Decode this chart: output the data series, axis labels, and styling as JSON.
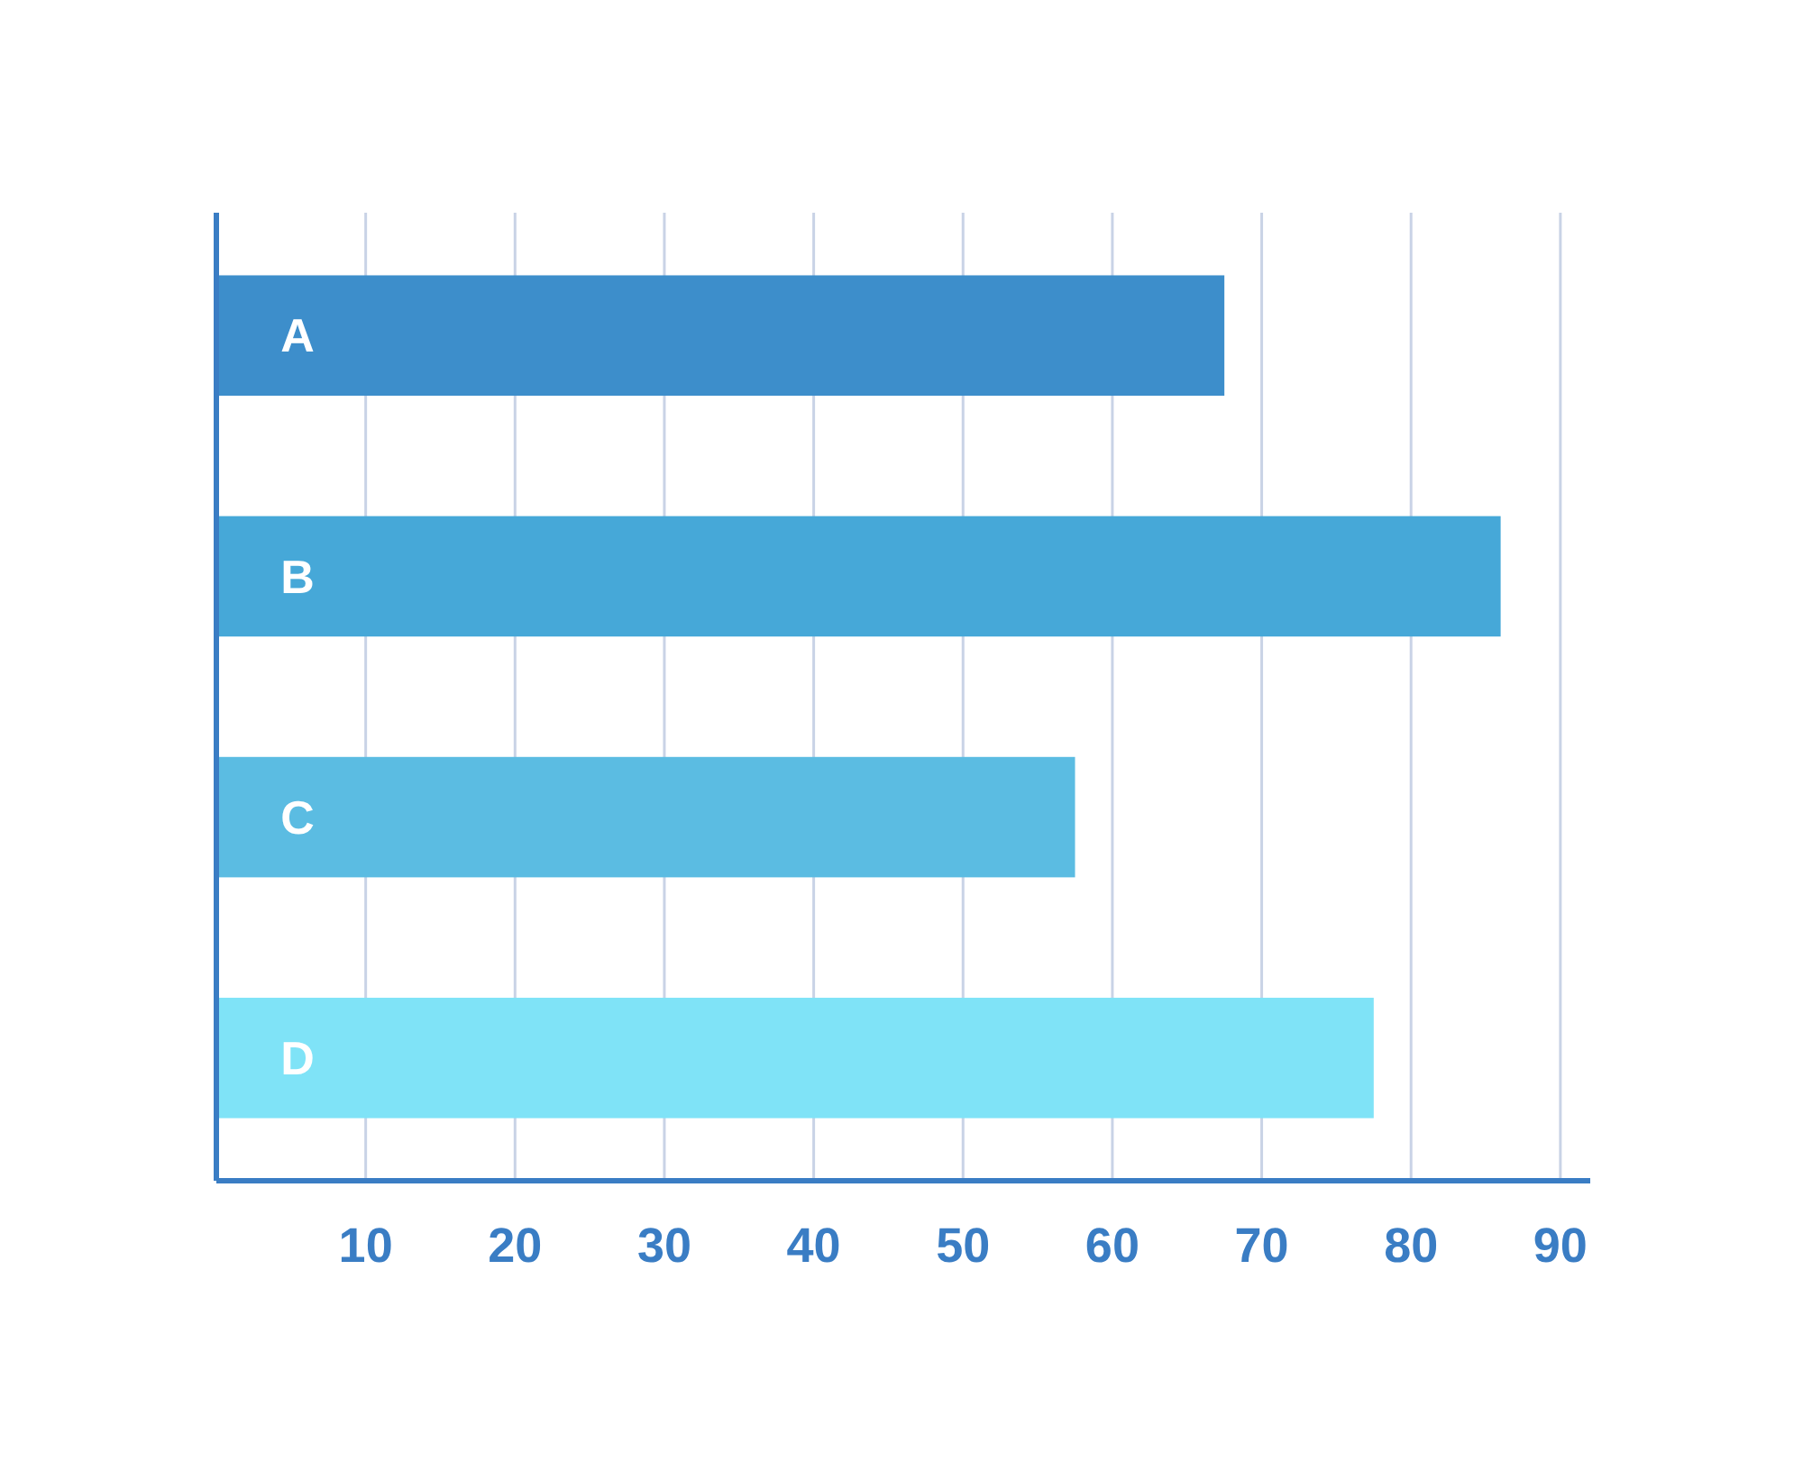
{
  "chart_data": {
    "type": "bar",
    "orientation": "horizontal",
    "categories": [
      "A",
      "B",
      "C",
      "D"
    ],
    "values": [
      67.5,
      86,
      57.5,
      77.5
    ],
    "colors": [
      "#3d8ecb",
      "#46a8d8",
      "#5bbce2",
      "#7fe3f7"
    ],
    "xlim": [
      0,
      92
    ],
    "xticks": [
      10,
      20,
      30,
      40,
      50,
      60,
      70,
      80,
      90
    ],
    "grid": "x"
  }
}
